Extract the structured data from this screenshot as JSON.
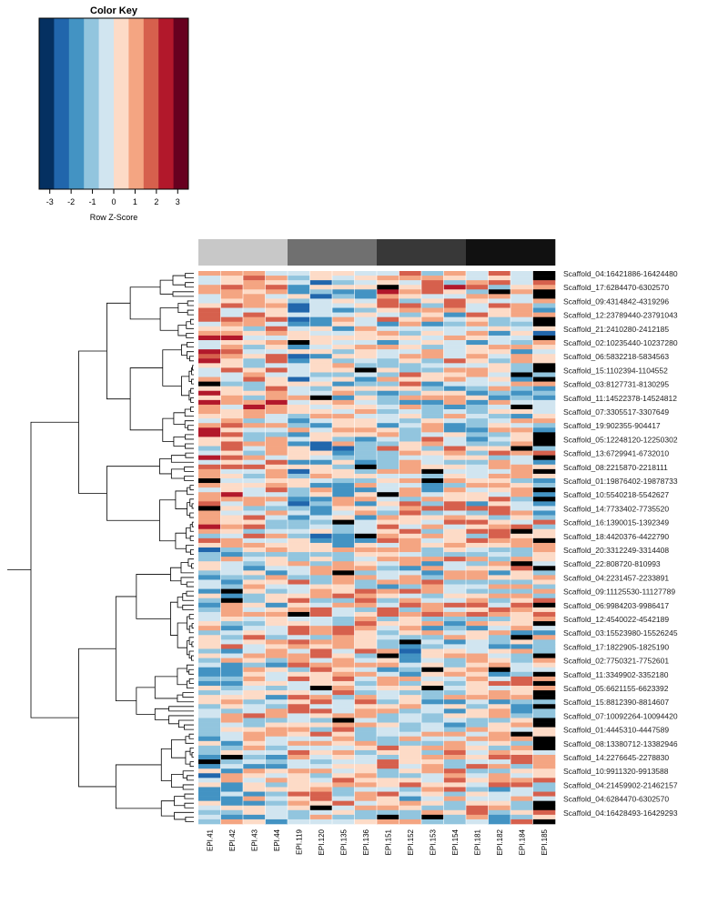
{
  "chart_data": {
    "type": "heatmap",
    "color_key": {
      "title": "Color Key",
      "xlabel": "Row Z-Score",
      "ticks": [
        "-3",
        "-2",
        "-1",
        "0",
        "1",
        "2",
        "3"
      ],
      "range": [
        -3.5,
        3.5
      ],
      "colors": [
        "#053061",
        "#2166ac",
        "#4393c3",
        "#92c5de",
        "#d1e5f0",
        "#fddbc7",
        "#f4a582",
        "#d6604d",
        "#b2182b",
        "#67001f"
      ],
      "colors_note_range": "10 equal bins from -3.5 to 3.5"
    },
    "extreme_color": "#000000",
    "columns": [
      "EPI.41",
      "EPI.42",
      "EPI.43",
      "EPI.44",
      "EPI.119",
      "EPI.120",
      "EPI.135",
      "EPI.136",
      "EPI.151",
      "EPI.152",
      "EPI.153",
      "EPI.154",
      "EPI.181",
      "EPI.182",
      "EPI.184",
      "EPI.185"
    ],
    "column_groups": [
      {
        "columns": [
          "EPI.41",
          "EPI.42",
          "EPI.43",
          "EPI.44"
        ],
        "color": "#c8c8c8"
      },
      {
        "columns": [
          "EPI.119",
          "EPI.120",
          "EPI.135",
          "EPI.136"
        ],
        "color": "#707070"
      },
      {
        "columns": [
          "EPI.151",
          "EPI.152",
          "EPI.153",
          "EPI.154"
        ],
        "color": "#383838"
      },
      {
        "columns": [
          "EPI.181",
          "EPI.182",
          "EPI.184",
          "EPI.185"
        ],
        "color": "#111111"
      }
    ],
    "row_labels_visible": [
      "Scaffold_04:16421886-16424480",
      "Scaffold_17:6284470-6302570",
      "Scaffold_09:4314842-4319296",
      "Scaffold_12:23789440-23791043",
      "Scaffold_21:2410280-2412185",
      "Scaffold_02:10235440-10237280",
      "Scaffold_06:5832218-5834563",
      "Scaffold_15:1102394-1104552",
      "Scaffold_03:8127731-8130295",
      "Scaffold_11:14522378-14524812",
      "Scaffold_07:3305517-3307649",
      "Scaffold_19:902355-904417",
      "Scaffold_05:12248120-12250302",
      "Scaffold_13:6729941-6732010",
      "Scaffold_08:2215870-2218111",
      "Scaffold_01:19876402-19878733",
      "Scaffold_10:5540218-5542627",
      "Scaffold_14:7733402-7735520",
      "Scaffold_16:1390015-1392349",
      "Scaffold_18:4420376-4422790",
      "Scaffold_20:3312249-3314408",
      "Scaffold_22:808720-810993",
      "Scaffold_04:2231457-2233891",
      "Scaffold_09:11125530-11127789",
      "Scaffold_06:9984203-9986417",
      "Scaffold_12:4540022-4542189",
      "Scaffold_03:15523980-15526245",
      "Scaffold_17:1822905-1825190",
      "Scaffold_02:7750321-7752601",
      "Scaffold_11:3349902-3352180",
      "Scaffold_05:6621155-6623392",
      "Scaffold_15:8812390-8814607",
      "Scaffold_07:10092264-10094420",
      "Scaffold_01:4445310-4447589",
      "Scaffold_08:13380712-13382946",
      "Scaffold_14:2276645-2278830",
      "Scaffold_10:9911320-9913588",
      "Scaffold_04:21459902-21462157",
      "Scaffold_04:6284470-6302570",
      "Scaffold_04:16428493-16429293"
    ],
    "n_rows": 120,
    "values": "encoded in the script as a base-10 digit string, one digit per heatmap cell; digit = bin index into colors, 9 = black for |z| > 3.5 is reserved as 'X'"
  }
}
